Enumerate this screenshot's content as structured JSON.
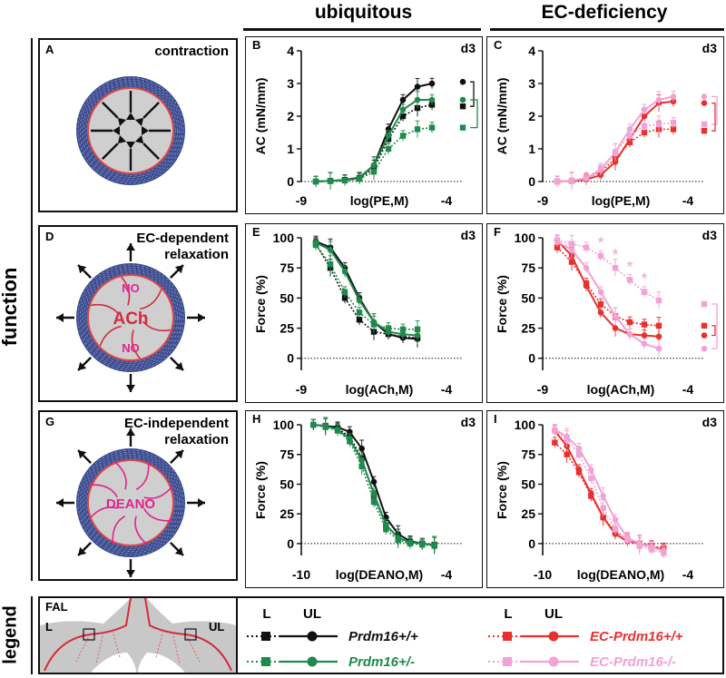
{
  "columns": {
    "ubiquitous": "ubiquitous",
    "ec_deficiency": "EC-deficiency"
  },
  "row_labels": {
    "function": "function",
    "legend": "legend"
  },
  "colors": {
    "wt": "#111111",
    "het": "#1e8a4c",
    "ecwt": "#e8302f",
    "ecko": "#f1a2d6",
    "vessel": "#3a4a8c",
    "agent": "#e0238e"
  },
  "schematics": {
    "A": {
      "letter": "A",
      "title": "contraction"
    },
    "D": {
      "letter": "D",
      "title_line1": "EC-dependent",
      "title_line2": "relaxation",
      "no_top": "NO",
      "ach": "ACh",
      "no_bottom": "NO"
    },
    "G": {
      "letter": "G",
      "title_line1": "EC-independent",
      "title_line2": "relaxation",
      "deano": "DEANO"
    }
  },
  "legend": {
    "anatomy": {
      "fal": "FAL",
      "l": "L",
      "ul": "UL"
    },
    "col_l": "L",
    "col_ul": "UL",
    "entries": [
      {
        "label": "Prdm16+/+",
        "color": "wt"
      },
      {
        "label": "Prdm16+/-",
        "color": "het"
      },
      {
        "label": "EC-Prdm16+/+",
        "color": "ecwt"
      },
      {
        "label": "EC-Prdm16-/-",
        "color": "ecko"
      }
    ]
  },
  "chart_data": [
    {
      "panel": "B",
      "type": "line",
      "tag": "d3",
      "xlabel": "log(PE,M)",
      "ylabel": "AC (mN/mm)",
      "xlim": [
        -9,
        -4
      ],
      "ylim": [
        0,
        4
      ],
      "yticks": [
        0,
        1,
        2,
        3,
        4
      ],
      "xticks": [
        "-9",
        "-4"
      ],
      "x": [
        -8.5,
        -8,
        -7.5,
        -7,
        -6.5,
        -6,
        -5.5,
        -5,
        -4.5
      ],
      "series": [
        {
          "name": "Prdm16+/+ L",
          "color": "wt",
          "marker": "square",
          "dashed": true,
          "values": [
            0,
            0.02,
            0.05,
            0.1,
            0.4,
            1.3,
            2.0,
            2.25,
            2.35
          ],
          "end": 2.3
        },
        {
          "name": "Prdm16+/+ UL",
          "color": "wt",
          "marker": "circle",
          "dashed": false,
          "values": [
            0,
            0.02,
            0.05,
            0.12,
            0.5,
            1.6,
            2.5,
            2.9,
            3.0
          ],
          "end": 3.05
        },
        {
          "name": "Prdm16+/- L",
          "color": "het",
          "marker": "square",
          "dashed": true,
          "values": [
            0,
            0.01,
            0.03,
            0.08,
            0.3,
            1.0,
            1.4,
            1.6,
            1.65
          ],
          "end": 1.65
        },
        {
          "name": "Prdm16+/- UL",
          "color": "het",
          "marker": "circle",
          "dashed": false,
          "values": [
            0,
            0.02,
            0.04,
            0.1,
            0.5,
            1.4,
            2.2,
            2.5,
            2.5
          ],
          "end": 2.5
        }
      ]
    },
    {
      "panel": "C",
      "type": "line",
      "tag": "d3",
      "xlabel": "log(PE,M)",
      "ylabel": "AC (mN/mm)",
      "xlim": [
        -9,
        -4
      ],
      "ylim": [
        0,
        4
      ],
      "yticks": [
        0,
        1,
        2,
        3,
        4
      ],
      "xticks": [
        "-9",
        "-4"
      ],
      "x": [
        -8.5,
        -8,
        -7.5,
        -7,
        -6.5,
        -6,
        -5.5,
        -5,
        -4.5
      ],
      "series": [
        {
          "name": "EC-Prdm16+/+ L",
          "color": "ecwt",
          "marker": "square",
          "dashed": true,
          "values": [
            0,
            0.02,
            0.1,
            0.3,
            0.7,
            1.2,
            1.5,
            1.6,
            1.6
          ],
          "end": 1.55
        },
        {
          "name": "EC-Prdm16+/+ UL",
          "color": "ecwt",
          "marker": "circle",
          "dashed": false,
          "values": [
            0,
            0.02,
            0.06,
            0.2,
            0.6,
            1.3,
            2.0,
            2.4,
            2.45
          ],
          "end": 2.4
        },
        {
          "name": "EC-Prdm16-/- L",
          "color": "ecko",
          "marker": "square",
          "dashed": true,
          "values": [
            0,
            0.03,
            0.12,
            0.4,
            0.9,
            1.4,
            1.7,
            1.75,
            1.8
          ],
          "end": 1.75
        },
        {
          "name": "EC-Prdm16-/- UL",
          "color": "ecko",
          "marker": "circle",
          "dashed": false,
          "values": [
            0,
            0.03,
            0.1,
            0.35,
            0.9,
            1.6,
            2.2,
            2.5,
            2.6
          ],
          "end": 2.6
        }
      ]
    },
    {
      "panel": "E",
      "type": "line",
      "tag": "d3",
      "xlabel": "log(ACh,M)",
      "ylabel": "Force (%)",
      "xlim": [
        -9,
        -4
      ],
      "ylim": [
        -10,
        100
      ],
      "yticks": [
        0,
        25,
        50,
        75,
        100
      ],
      "xticks": [
        "-9",
        "-4"
      ],
      "x": [
        -8.5,
        -8,
        -7.5,
        -7,
        -6.5,
        -6,
        -5.5,
        -5
      ],
      "series": [
        {
          "name": "Prdm16+/+ L",
          "color": "wt",
          "marker": "square",
          "dashed": true,
          "values": [
            95,
            75,
            50,
            32,
            22,
            20,
            18,
            17
          ]
        },
        {
          "name": "Prdm16+/+ UL",
          "color": "wt",
          "marker": "circle",
          "dashed": false,
          "values": [
            97,
            92,
            75,
            50,
            30,
            20,
            17,
            16
          ]
        },
        {
          "name": "Prdm16+/- L",
          "color": "het",
          "marker": "square",
          "dashed": true,
          "values": [
            94,
            78,
            55,
            38,
            28,
            25,
            24,
            24
          ]
        },
        {
          "name": "Prdm16+/- UL",
          "color": "het",
          "marker": "circle",
          "dashed": false,
          "values": [
            96,
            90,
            72,
            48,
            30,
            22,
            20,
            19
          ]
        }
      ]
    },
    {
      "panel": "F",
      "type": "line",
      "tag": "d3",
      "xlabel": "log(ACh,M)",
      "ylabel": "Force (%)",
      "xlim": [
        -9,
        -4
      ],
      "ylim": [
        -10,
        100
      ],
      "yticks": [
        0,
        25,
        50,
        75,
        100
      ],
      "xticks": [
        "-9",
        "-4"
      ],
      "x": [
        -8.5,
        -8,
        -7.5,
        -7,
        -6.5,
        -6,
        -5.5,
        -5
      ],
      "significance": [
        -7,
        -6.5,
        -6,
        -5.5
      ],
      "series": [
        {
          "name": "EC-Prdm16+/+ L",
          "color": "ecwt",
          "marker": "square",
          "dashed": true,
          "values": [
            92,
            80,
            62,
            45,
            35,
            30,
            28,
            27
          ],
          "end": 27
        },
        {
          "name": "EC-Prdm16+/+ UL",
          "color": "ecwt",
          "marker": "circle",
          "dashed": false,
          "values": [
            98,
            85,
            60,
            38,
            25,
            20,
            19,
            18
          ],
          "end": 19
        },
        {
          "name": "EC-Prdm16-/- L",
          "color": "ecko",
          "marker": "square",
          "dashed": true,
          "values": [
            98,
            95,
            92,
            85,
            75,
            65,
            55,
            48
          ],
          "end": 45
        },
        {
          "name": "EC-Prdm16-/- UL",
          "color": "ecko",
          "marker": "circle",
          "dashed": false,
          "values": [
            97,
            90,
            75,
            55,
            35,
            20,
            12,
            8
          ],
          "end": 8
        }
      ]
    },
    {
      "panel": "H",
      "type": "line",
      "tag": "d3",
      "xlabel": "log(DEANO,M)",
      "ylabel": "Force (%)",
      "xlim": [
        -10,
        -4
      ],
      "ylim": [
        -10,
        100
      ],
      "yticks": [
        0,
        25,
        50,
        75,
        100
      ],
      "xticks": [
        "-10",
        "-4"
      ],
      "x": [
        -9.5,
        -9,
        -8.5,
        -8,
        -7.5,
        -7,
        -6.5,
        -6,
        -5.5,
        -5,
        -4.5
      ],
      "series": [
        {
          "name": "Prdm16+/+ L",
          "color": "wt",
          "marker": "square",
          "dashed": true,
          "values": [
            100,
            99,
            97,
            90,
            72,
            40,
            15,
            5,
            1,
            0,
            -1
          ]
        },
        {
          "name": "Prdm16+/+ UL",
          "color": "wt",
          "marker": "circle",
          "dashed": false,
          "values": [
            100,
            99,
            98,
            94,
            80,
            52,
            22,
            8,
            2,
            0,
            -1
          ]
        },
        {
          "name": "Prdm16+/- L",
          "color": "het",
          "marker": "square",
          "dashed": true,
          "values": [
            100,
            98,
            95,
            86,
            65,
            35,
            12,
            3,
            0,
            -1,
            -2
          ]
        },
        {
          "name": "Prdm16+/- UL",
          "color": "het",
          "marker": "circle",
          "dashed": false,
          "values": [
            100,
            99,
            96,
            88,
            70,
            42,
            16,
            5,
            1,
            0,
            -1
          ]
        }
      ]
    },
    {
      "panel": "I",
      "type": "line",
      "tag": "d3",
      "xlabel": "log(DEANO,M)",
      "ylabel": "Force (%)",
      "xlim": [
        -10,
        -4
      ],
      "ylim": [
        -10,
        100
      ],
      "yticks": [
        0,
        25,
        50,
        75,
        100
      ],
      "xticks": [
        "-10",
        "-4"
      ],
      "x": [
        -9.5,
        -9,
        -8.5,
        -8,
        -7.5,
        -7,
        -6.5,
        -6,
        -5.5,
        -5
      ],
      "series": [
        {
          "name": "EC-Prdm16+/+ L",
          "color": "ecwt",
          "marker": "square",
          "dashed": true,
          "values": [
            85,
            75,
            60,
            40,
            22,
            10,
            4,
            0,
            -2,
            -4
          ]
        },
        {
          "name": "EC-Prdm16+/+ UL",
          "color": "ecwt",
          "marker": "circle",
          "dashed": false,
          "values": [
            95,
            82,
            62,
            42,
            22,
            8,
            2,
            0,
            -3,
            -5
          ]
        },
        {
          "name": "EC-Prdm16-/- L",
          "color": "ecko",
          "marker": "square",
          "dashed": true,
          "values": [
            95,
            88,
            75,
            55,
            30,
            12,
            3,
            -2,
            -5,
            -8
          ]
        },
        {
          "name": "EC-Prdm16-/- UL",
          "color": "ecko",
          "marker": "circle",
          "dashed": false,
          "values": [
            96,
            90,
            80,
            62,
            40,
            20,
            5,
            0,
            -3,
            -6
          ]
        }
      ]
    }
  ]
}
